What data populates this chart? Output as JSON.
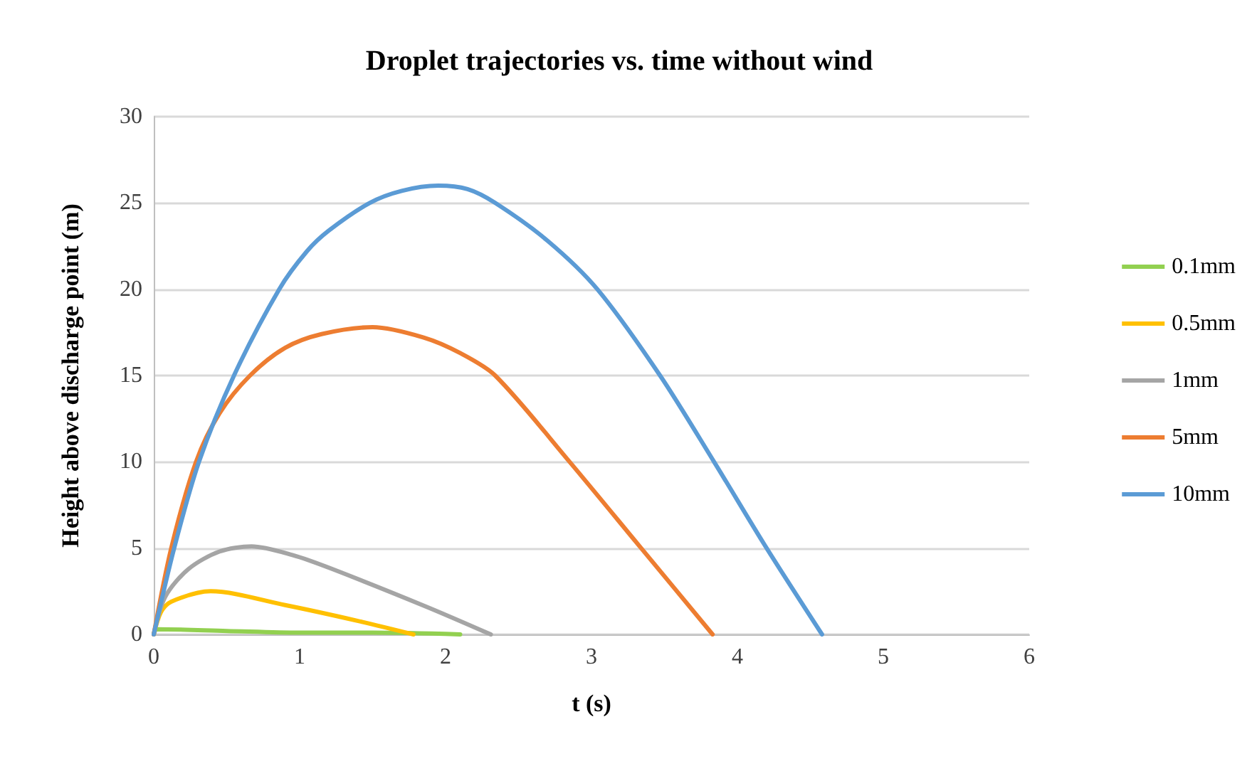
{
  "chart_data": {
    "type": "line",
    "title": "Droplet trajectories vs. time without wind",
    "xlabel": "t (s)",
    "ylabel": "Height above discharge point (m)",
    "xlim": [
      0,
      6
    ],
    "xticks": [
      0,
      1,
      2,
      3,
      4,
      5,
      6
    ],
    "ylim": [
      0,
      30
    ],
    "yticks": [
      0,
      5,
      10,
      15,
      20,
      25,
      30
    ],
    "grid": "y",
    "legend": "right",
    "marker": "none",
    "line_style": "solid",
    "series": [
      {
        "name": "0.1mm",
        "color": "#92d050",
        "x": [
          0,
          0.02,
          0.5,
          1,
          1.5,
          2.1
        ],
        "values": [
          0,
          0.3,
          0.2,
          0.1,
          0.1,
          0
        ]
      },
      {
        "name": "0.5mm",
        "color": "#ffc000",
        "x": [
          0,
          0.05,
          0.12,
          0.39,
          0.9,
          1.39,
          1.78
        ],
        "values": [
          0,
          1.3,
          1.9,
          2.5,
          1.7,
          0.8,
          0
        ]
      },
      {
        "name": "1mm",
        "color": "#a5a5a5",
        "x": [
          0,
          0.08,
          0.24,
          0.45,
          0.67,
          0.95,
          1.22,
          1.87,
          2.31
        ],
        "values": [
          0,
          2.2,
          3.8,
          4.8,
          5.1,
          4.6,
          3.8,
          1.6,
          0
        ]
      },
      {
        "name": "5mm",
        "color": "#ed7d31",
        "x": [
          0,
          0.12,
          0.29,
          0.45,
          0.66,
          0.9,
          1.15,
          1.5,
          1.85,
          2.1,
          2.34,
          2.85,
          3.34,
          3.83
        ],
        "values": [
          0,
          5,
          10,
          12.8,
          15,
          16.6,
          17.4,
          17.8,
          17.2,
          16.3,
          15,
          10,
          5,
          0
        ]
      },
      {
        "name": "10mm",
        "color": "#5b9bd5",
        "x": [
          0,
          0.14,
          0.31,
          0.55,
          0.86,
          1.05,
          1.2,
          1.48,
          1.7,
          1.95,
          2.15,
          2.34,
          2.7,
          3.04,
          3.47,
          3.84,
          4.2,
          4.58
        ],
        "values": [
          0,
          5,
          10,
          15,
          20,
          22.2,
          23.4,
          25,
          25.7,
          26,
          25.8,
          25,
          22.8,
          20,
          15,
          10,
          5,
          0
        ]
      }
    ]
  }
}
